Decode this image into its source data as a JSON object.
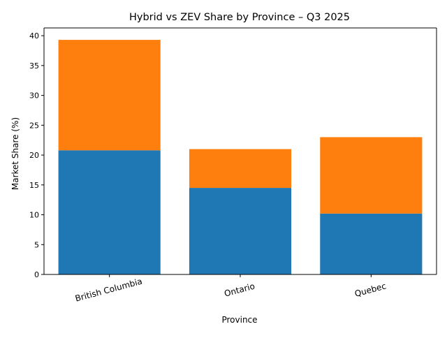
{
  "chart_data": {
    "type": "bar",
    "stacked": true,
    "title": "Hybrid vs ZEV Share by Province – Q3 2025",
    "xlabel": "Province",
    "ylabel": "Market Share (%)",
    "categories": [
      "British Columbia",
      "Ontario",
      "Quebec"
    ],
    "series": [
      {
        "values": [
          20.8,
          14.5,
          10.2
        ],
        "color": "#1f77b4"
      },
      {
        "values": [
          18.5,
          6.5,
          12.8
        ],
        "color": "#ff7f0e"
      }
    ],
    "ylim": [
      0,
      41.3
    ],
    "yticks": [
      0,
      5,
      10,
      15,
      20,
      25,
      30,
      35,
      40
    ],
    "xtick_rotation": 15,
    "grid": false,
    "legend": "none"
  }
}
